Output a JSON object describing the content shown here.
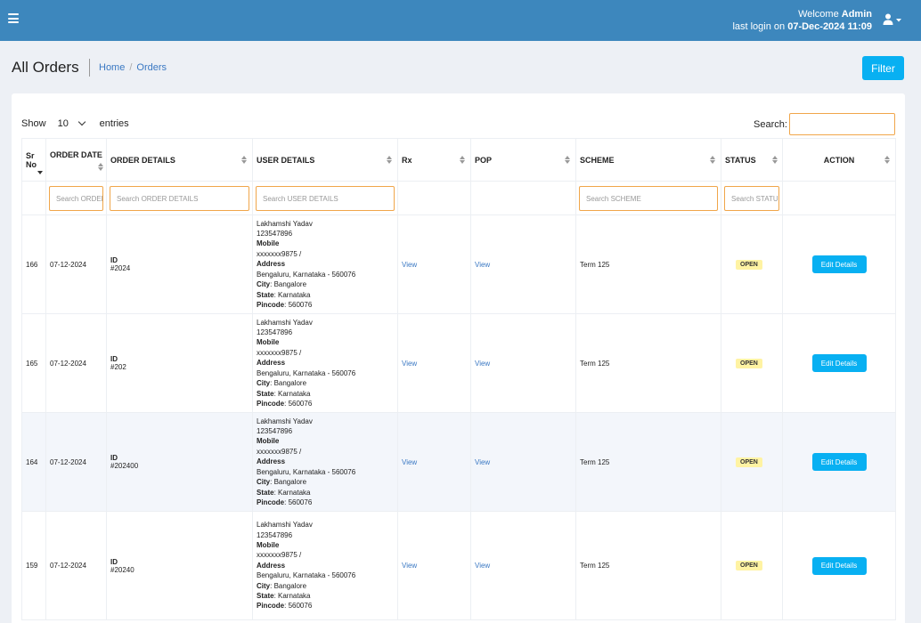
{
  "header": {
    "welcome_prefix": "Welcome ",
    "user": "Admin",
    "last_login_prefix": "last login on ",
    "last_login": "07-Dec-2024 11:09",
    "menu_icon": "hamburger-icon",
    "user_icon": "user-icon"
  },
  "page": {
    "title": "All Orders",
    "breadcrumb_home": "Home",
    "breadcrumb_sep": "/",
    "breadcrumb_current": "Orders",
    "filter_label": "Filter"
  },
  "table_controls": {
    "show_label": "Show",
    "entries_value": "10",
    "entries_label": "entries",
    "search_label": "Search:"
  },
  "columns": [
    {
      "line1": "Sr",
      "line2": "No"
    },
    {
      "line1": "ORDER DATE",
      "line2": ""
    },
    {
      "line1": "ORDER DETAILS",
      "line2": ""
    },
    {
      "line1": "USER DETAILS",
      "line2": ""
    },
    {
      "line1": "Rx",
      "line2": ""
    },
    {
      "line1": "POP",
      "line2": ""
    },
    {
      "line1": "SCHEME",
      "line2": ""
    },
    {
      "line1": "STATUS",
      "line2": ""
    },
    {
      "line1": "ACTION",
      "line2": ""
    }
  ],
  "filters": {
    "order_date": "Search ORDER DATE",
    "order_details": "Search ORDER DETAILS",
    "user_details": "Search USER DETAILS",
    "scheme": "Search SCHEME",
    "status": "Search STATUS"
  },
  "labels": {
    "id": "ID",
    "mobile": "Mobile",
    "address": "Address",
    "city": "City",
    "state": "State",
    "pincode": "Pincode",
    "view": "View",
    "edit": "Edit Details"
  },
  "rows": [
    {
      "sr": "166",
      "date": "07-12-2024",
      "order_id": "#2024",
      "name": "Lakhamshi Yadav",
      "phone": "123547896",
      "mobile": "xxxxxxx9875 /",
      "address": "Bengaluru, Karnataka - 560076",
      "city": ": Bangalore",
      "state": ": Karnataka",
      "pincode": ": 560076",
      "scheme": "Term 125",
      "status": "OPEN"
    },
    {
      "sr": "165",
      "date": "07-12-2024",
      "order_id": "#202",
      "name": "Lakhamshi Yadav",
      "phone": "123547896",
      "mobile": "xxxxxxx9875 /",
      "address": "Bengaluru, Karnataka - 560076",
      "city": ": Bangalore",
      "state": ": Karnataka",
      "pincode": ": 560076",
      "scheme": "Term 125",
      "status": "OPEN"
    },
    {
      "sr": "164",
      "date": "07-12-2024",
      "order_id": "#202400",
      "name": "Lakhamshi Yadav",
      "phone": "123547896",
      "mobile": "xxxxxxx9875 /",
      "address": "Bengaluru, Karnataka - 560076",
      "city": ": Bangalore",
      "state": ": Karnataka",
      "pincode": ": 560076",
      "scheme": "Term 125",
      "status": "OPEN"
    },
    {
      "sr": "159",
      "date": "07-12-2024",
      "order_id": "#20240",
      "name": "Lakhamshi Yadav",
      "phone": "123547896",
      "mobile": "xxxxxxx9875 /",
      "address": "Bengaluru, Karnataka - 560076",
      "city": ": Bangalore",
      "state": ": Karnataka",
      "pincode": ": 560076",
      "scheme": "Term 125",
      "status": "OPEN"
    }
  ]
}
